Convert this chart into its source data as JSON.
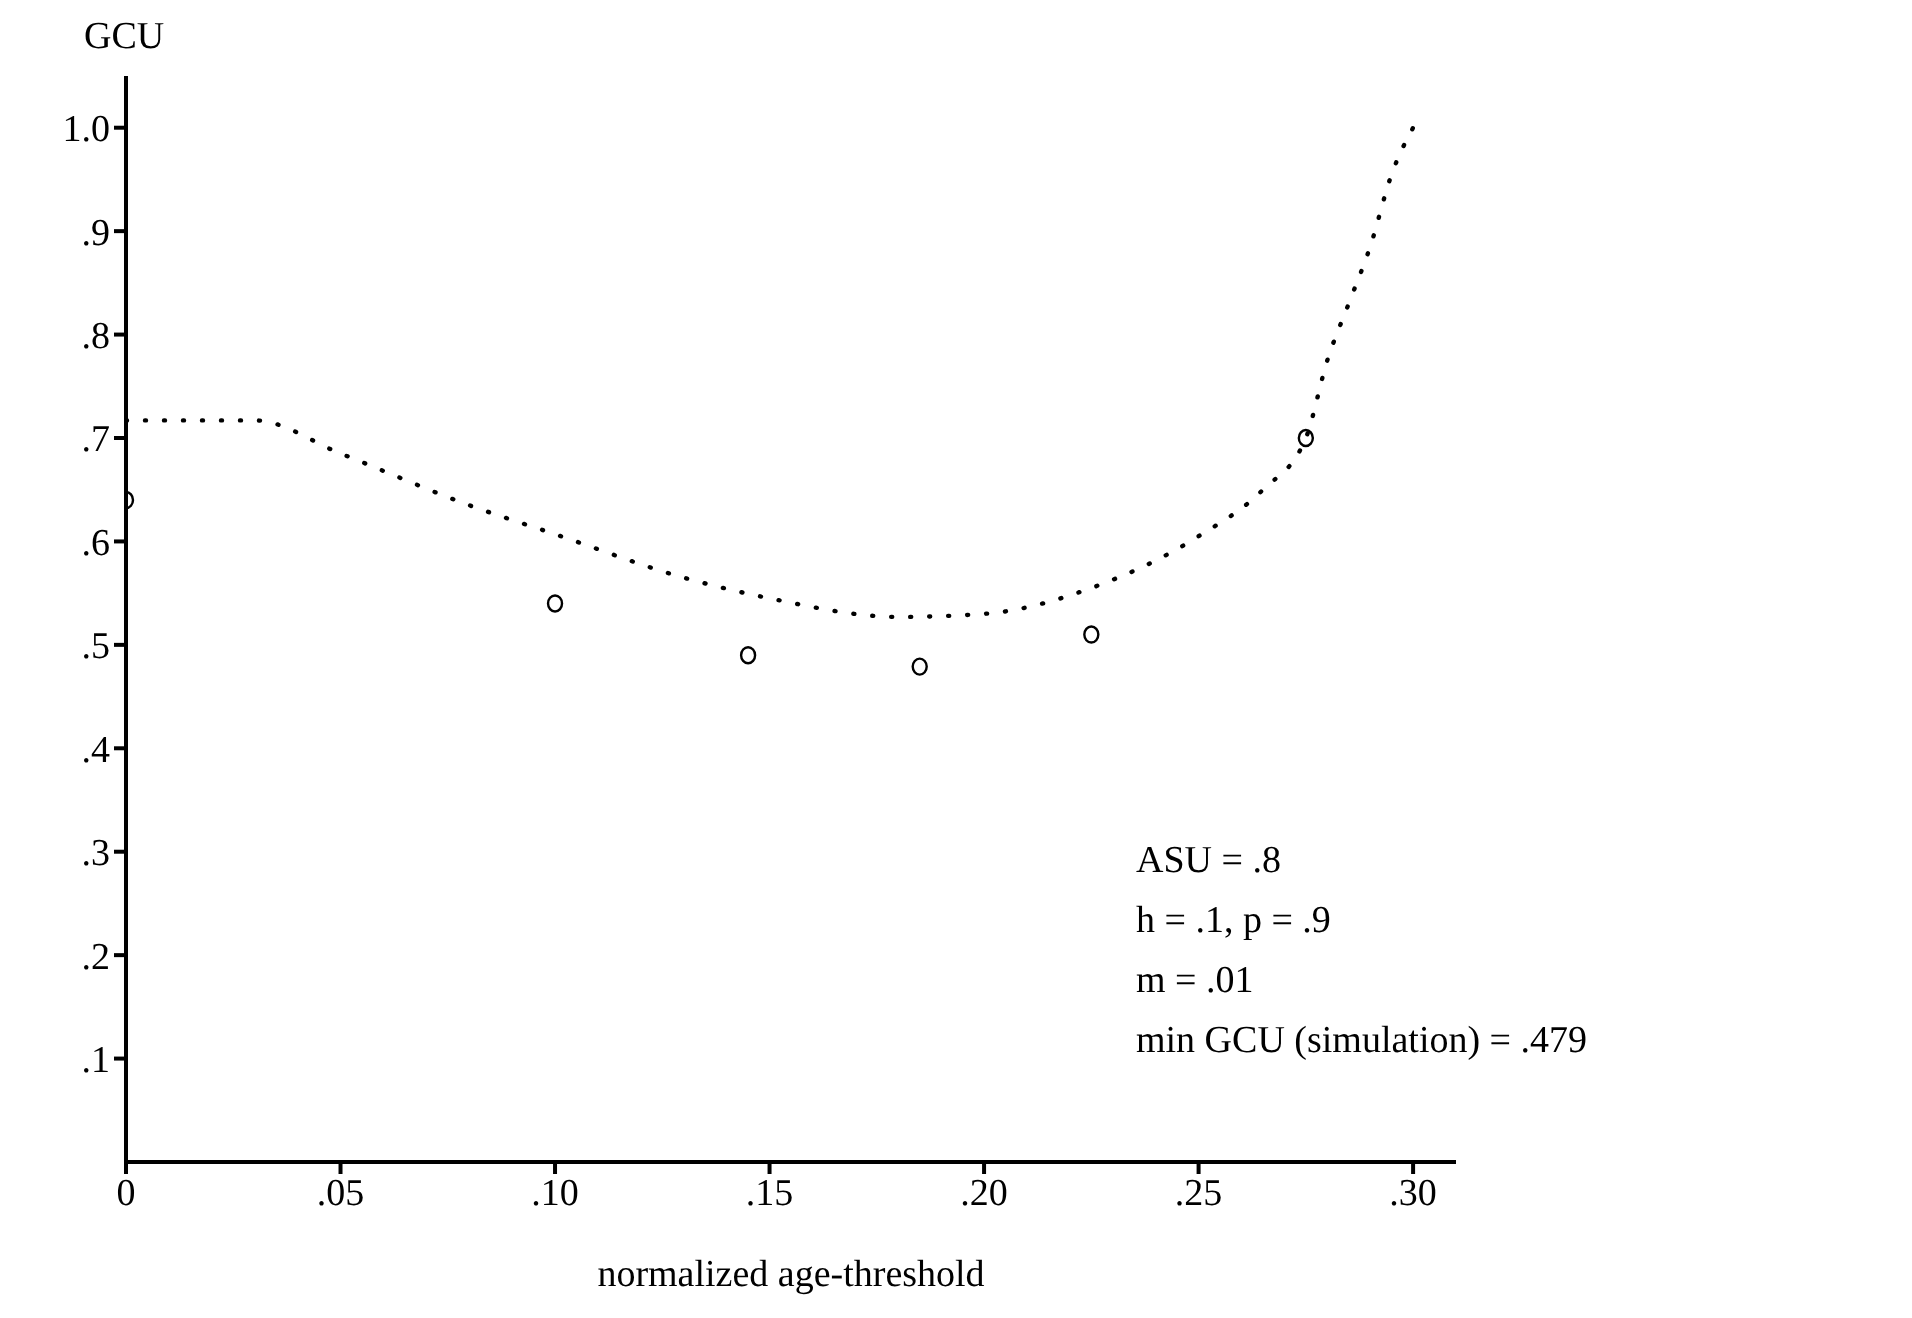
{
  "chart_data": {
    "type": "scatter",
    "xlabel": "normalized age-threshold",
    "ylabel": "GCU",
    "xlim": [
      0,
      0.31
    ],
    "ylim": [
      0,
      1.05
    ],
    "xticks": [
      0,
      {
        "value": 0.05,
        "label": ".05"
      },
      {
        "value": 0.1,
        "label": ".10"
      },
      {
        "value": 0.15,
        "label": ".15"
      },
      {
        "value": 0.2,
        "label": ".20"
      },
      {
        "value": 0.25,
        "label": ".25"
      },
      {
        "value": 0.3,
        "label": ".30"
      }
    ],
    "yticks": [
      {
        "value": 0.1,
        "label": ".1"
      },
      {
        "value": 0.2,
        "label": ".2"
      },
      {
        "value": 0.3,
        "label": ".3"
      },
      {
        "value": 0.4,
        "label": ".4"
      },
      {
        "value": 0.5,
        "label": ".5"
      },
      {
        "value": 0.6,
        "label": ".6"
      },
      {
        "value": 0.7,
        "label": ".7"
      },
      {
        "value": 0.8,
        "label": ".8"
      },
      {
        "value": 0.9,
        "label": ".9"
      },
      {
        "value": 1.0,
        "label": "1.0"
      }
    ],
    "grid": false,
    "legend": false,
    "series": [
      {
        "color": "#000000",
        "marker": "circle",
        "x": [
          0,
          0.1,
          0.145,
          0.185,
          0.225,
          0.275
        ],
        "values": [
          0.64,
          0.54,
          0.49,
          0.479,
          0.51,
          0.7
        ]
      },
      {
        "type": "line",
        "color": "#000000",
        "marker": "none",
        "line_style": "dotted",
        "x": [
          0,
          0.03,
          0.05,
          0.08,
          0.1,
          0.13,
          0.15,
          0.18,
          0.2,
          0.225,
          0.25,
          0.265,
          0.275,
          0.28,
          0.285,
          0.29,
          0.295,
          0.3
        ],
        "values": [
          0.717,
          0.717,
          0.685,
          0.635,
          0.607,
          0.565,
          0.545,
          0.527,
          0.53,
          0.555,
          0.605,
          0.65,
          0.7,
          0.775,
          0.83,
          0.885,
          0.955,
          1.0
        ]
      }
    ],
    "annotations": [
      "ASU = .8",
      "h = .1, p = .9",
      "m = .01",
      "min GCU (simulation) = .479"
    ]
  }
}
